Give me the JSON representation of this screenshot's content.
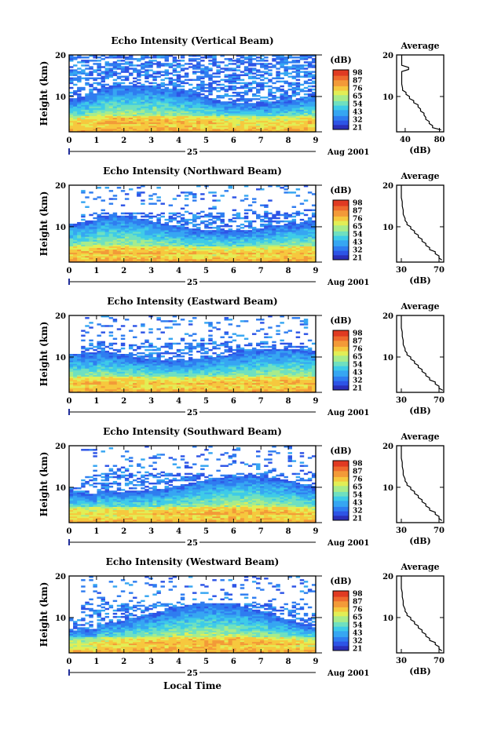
{
  "figure": {
    "x_axis_title": "Local Time",
    "date_day": "25",
    "date_label": "Aug 2001",
    "colorbar_unit": "(dB)",
    "average_title": "Average",
    "average_xlabel": "(dB)",
    "ylabel": "Height (km)"
  },
  "colors": {
    "colormap": [
      "#2b2fb8",
      "#2d54e6",
      "#2f7df0",
      "#36a6f2",
      "#3ecbe8",
      "#6fe0c0",
      "#a8ec8a",
      "#e2ee55",
      "#f6c83e",
      "#f39a38",
      "#ee6a2e",
      "#e03a22"
    ]
  },
  "chart_data": [
    {
      "type": "heatmap",
      "title": "Echo Intensity (Vertical Beam)",
      "xlabel": "",
      "ylabel": "Height (km)",
      "x_ticks": [
        "0",
        "1",
        "2",
        "3",
        "4",
        "5",
        "6",
        "7",
        "8",
        "9"
      ],
      "y_ticks": [
        "10",
        "20"
      ],
      "xlim": [
        0,
        9
      ],
      "ylim": [
        1.5,
        20
      ],
      "colorbar": {
        "label": "(dB)",
        "ticks": [
          "98",
          "87",
          "76",
          "65",
          "54",
          "43",
          "32",
          "21"
        ]
      },
      "profile": {
        "title": "Average",
        "xlabel": "(dB)",
        "x_ticks": [
          "40",
          "80"
        ],
        "xlim": [
          30,
          85
        ],
        "height": [
          2,
          3,
          4,
          5,
          6,
          7,
          8,
          9,
          10,
          11,
          12,
          14,
          16,
          17,
          18,
          19,
          20
        ],
        "db": [
          82,
          72,
          68,
          64,
          62,
          58,
          55,
          50,
          45,
          41,
          37,
          36,
          36,
          44,
          36,
          36,
          36
        ]
      }
    },
    {
      "type": "heatmap",
      "title": "Echo Intensity (Northward Beam)",
      "xlabel": "",
      "ylabel": "Height (km)",
      "x_ticks": [
        "0",
        "1",
        "2",
        "3",
        "4",
        "5",
        "6",
        "7",
        "8",
        "9"
      ],
      "y_ticks": [
        "10",
        "20"
      ],
      "xlim": [
        0,
        9
      ],
      "ylim": [
        1.5,
        20
      ],
      "colorbar": {
        "label": "(dB)",
        "ticks": [
          "98",
          "87",
          "76",
          "65",
          "54",
          "43",
          "32",
          "21"
        ]
      },
      "profile": {
        "title": "Average",
        "xlabel": "(dB)",
        "x_ticks": [
          "30",
          "70"
        ],
        "xlim": [
          25,
          75
        ],
        "height": [
          2,
          3,
          4,
          5,
          6,
          7,
          8,
          9,
          10,
          11,
          12,
          14,
          16,
          18,
          20
        ],
        "db": [
          73,
          70,
          66,
          60,
          56,
          52,
          48,
          44,
          40,
          36,
          34,
          32,
          31,
          30,
          30
        ]
      }
    },
    {
      "type": "heatmap",
      "title": "Echo Intensity (Eastward Beam)",
      "xlabel": "",
      "ylabel": "Height (km)",
      "x_ticks": [
        "0",
        "1",
        "2",
        "3",
        "4",
        "5",
        "6",
        "7",
        "8",
        "9"
      ],
      "y_ticks": [
        "10",
        "20"
      ],
      "xlim": [
        0,
        9
      ],
      "ylim": [
        1.5,
        20
      ],
      "colorbar": {
        "label": "(dB)",
        "ticks": [
          "98",
          "87",
          "76",
          "65",
          "54",
          "43",
          "32",
          "21"
        ]
      },
      "profile": {
        "title": "Average",
        "xlabel": "(dB)",
        "x_ticks": [
          "30",
          "70"
        ],
        "xlim": [
          25,
          75
        ],
        "height": [
          2,
          3,
          4,
          5,
          6,
          7,
          8,
          9,
          10,
          11,
          12,
          14,
          16,
          18,
          20
        ],
        "db": [
          74,
          70,
          66,
          60,
          56,
          52,
          48,
          44,
          40,
          36,
          34,
          32,
          31,
          30,
          30
        ]
      }
    },
    {
      "type": "heatmap",
      "title": "Echo Intensity (Southward Beam)",
      "xlabel": "",
      "ylabel": "Height (km)",
      "x_ticks": [
        "0",
        "1",
        "2",
        "3",
        "4",
        "5",
        "6",
        "7",
        "8",
        "9"
      ],
      "y_ticks": [
        "10",
        "20"
      ],
      "xlim": [
        0,
        9
      ],
      "ylim": [
        1.5,
        20
      ],
      "colorbar": {
        "label": "(dB)",
        "ticks": [
          "98",
          "87",
          "76",
          "65",
          "54",
          "43",
          "32",
          "21"
        ]
      },
      "profile": {
        "title": "Average",
        "xlabel": "(dB)",
        "x_ticks": [
          "30",
          "70"
        ],
        "xlim": [
          25,
          75
        ],
        "height": [
          2,
          3,
          4,
          5,
          6,
          7,
          8,
          9,
          10,
          11,
          12,
          14,
          16,
          18,
          20
        ],
        "db": [
          73,
          70,
          66,
          60,
          56,
          52,
          48,
          44,
          40,
          36,
          34,
          32,
          31,
          30,
          30
        ]
      }
    },
    {
      "type": "heatmap",
      "title": "Echo Intensity (Westward Beam)",
      "xlabel": "",
      "ylabel": "Height (km)",
      "x_ticks": [
        "0",
        "1",
        "2",
        "3",
        "4",
        "5",
        "6",
        "7",
        "8",
        "9"
      ],
      "y_ticks": [
        "10",
        "20"
      ],
      "xlim": [
        0,
        9
      ],
      "ylim": [
        1.5,
        20
      ],
      "colorbar": {
        "label": "(dB)",
        "ticks": [
          "98",
          "87",
          "76",
          "65",
          "54",
          "43",
          "32",
          "21"
        ]
      },
      "profile": {
        "title": "Average",
        "xlabel": "(dB)",
        "x_ticks": [
          "30",
          "70"
        ],
        "xlim": [
          25,
          75
        ],
        "height": [
          2,
          3,
          4,
          5,
          6,
          7,
          8,
          9,
          10,
          11,
          12,
          14,
          16,
          18,
          20
        ],
        "db": [
          73,
          70,
          66,
          60,
          56,
          52,
          48,
          44,
          40,
          36,
          34,
          32,
          31,
          30,
          30
        ]
      }
    }
  ]
}
